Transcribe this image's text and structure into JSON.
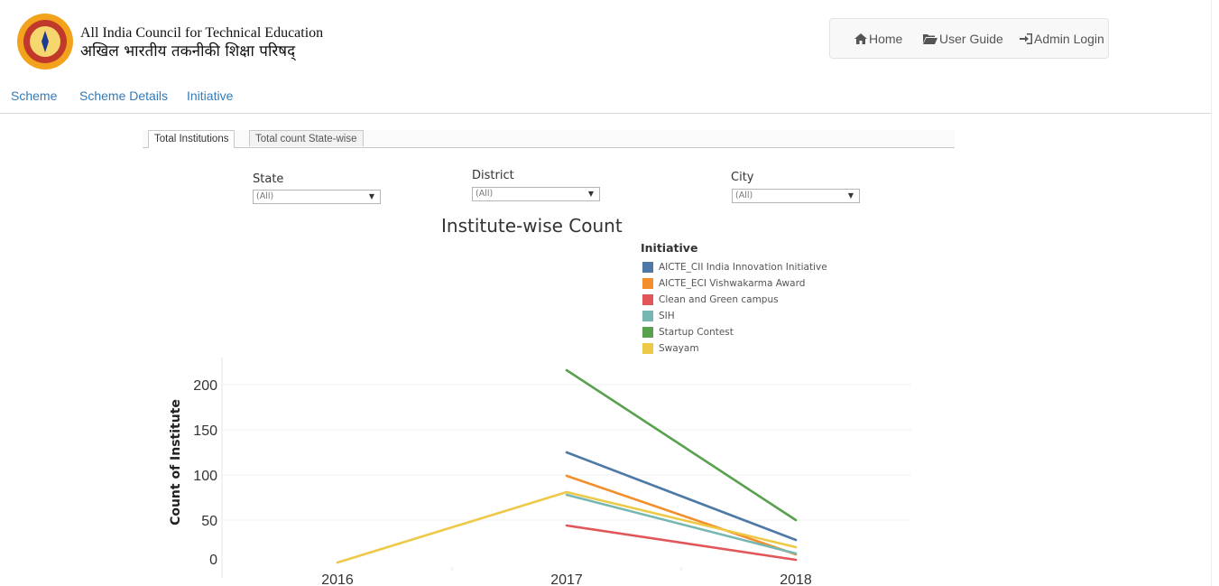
{
  "header": {
    "org_name_en": "All India Council for Technical Education",
    "org_name_hi": "अखिल भारतीय तकनीकी शिक्षा परिषद्",
    "logo_text": "AICTE",
    "nav": [
      {
        "label": "Home",
        "icon": "home-icon"
      },
      {
        "label": "User Guide",
        "icon": "folder-open-icon"
      },
      {
        "label": "Admin Login",
        "icon": "sign-in-icon"
      }
    ]
  },
  "subnav": [
    "Scheme",
    "Scheme Details",
    "Initiative"
  ],
  "tabs": [
    {
      "label": "Total Institutions",
      "active": true
    },
    {
      "label": "Total count State-wise",
      "active": false
    }
  ],
  "filters": [
    {
      "label": "State",
      "value": "(All)"
    },
    {
      "label": "District",
      "value": "(All)"
    },
    {
      "label": "City",
      "value": "(All)"
    }
  ],
  "chart_data": {
    "type": "line",
    "title": "Institute-wise Count",
    "xlabel": "",
    "ylabel": "Count of Institute",
    "x": [
      "2016",
      "2017",
      "2018"
    ],
    "y_ticks": [
      0,
      50,
      100,
      150,
      200
    ],
    "ylim": [
      -12,
      230
    ],
    "grid": true,
    "legend_title": "Initiative",
    "legend_position": "top-right",
    "series": [
      {
        "name": "AICTE_CII India Innovation Initiative",
        "color": "#4e79a7",
        "values": [
          null,
          125,
          28
        ]
      },
      {
        "name": "AICTE_ECI Vishwakarma Award",
        "color": "#f28e2b",
        "values": [
          null,
          99,
          12
        ]
      },
      {
        "name": "Clean and Green campus",
        "color": "#e15759",
        "values": [
          null,
          44,
          6
        ]
      },
      {
        "name": "SIH",
        "color": "#76b7b2",
        "values": [
          null,
          78,
          13
        ]
      },
      {
        "name": "Startup Contest",
        "color": "#59a14f",
        "values": [
          null,
          216,
          50
        ]
      },
      {
        "name": "Swayam",
        "color": "#edc948",
        "values": [
          3,
          81,
          20
        ]
      }
    ]
  }
}
